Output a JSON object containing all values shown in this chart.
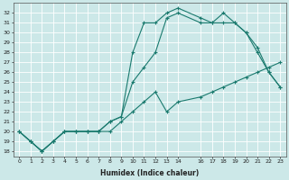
{
  "xlabel": "Humidex (Indice chaleur)",
  "bg_color": "#cce8e8",
  "grid_color": "#ffffff",
  "line_color": "#1a7a6e",
  "xlim": [
    -0.5,
    23.5
  ],
  "ylim": [
    17.5,
    33
  ],
  "xticks": [
    0,
    1,
    2,
    3,
    4,
    5,
    6,
    7,
    8,
    9,
    10,
    11,
    12,
    13,
    14,
    16,
    17,
    18,
    19,
    20,
    21,
    22,
    23
  ],
  "yticks": [
    18,
    19,
    20,
    21,
    22,
    23,
    24,
    25,
    26,
    27,
    28,
    29,
    30,
    31,
    32
  ],
  "curve1_x": [
    0,
    1,
    2,
    3,
    4,
    5,
    6,
    7,
    8,
    9,
    10,
    11,
    12,
    13,
    14,
    16,
    17,
    18,
    19,
    20,
    21,
    22,
    23
  ],
  "curve1_y": [
    20,
    19,
    18,
    19,
    20,
    20,
    20,
    20,
    20,
    21,
    22,
    23,
    24,
    22,
    23,
    23.5,
    24,
    24.5,
    25,
    25.5,
    26,
    26.5,
    27
  ],
  "curve2_x": [
    0,
    1,
    2,
    3,
    4,
    5,
    6,
    7,
    8,
    9,
    10,
    11,
    12,
    13,
    14,
    16,
    17,
    18,
    19,
    20,
    21,
    22,
    23
  ],
  "curve2_y": [
    20,
    19,
    18,
    19,
    20,
    20,
    20,
    20,
    21,
    21.5,
    25,
    26.5,
    28,
    31.5,
    32,
    31,
    31,
    32,
    31,
    30,
    28,
    26,
    24.5
  ],
  "curve3_x": [
    0,
    1,
    2,
    3,
    4,
    5,
    6,
    7,
    8,
    9,
    10,
    11,
    12,
    13,
    14,
    16,
    17,
    18,
    19,
    20,
    21,
    22,
    23
  ],
  "curve3_y": [
    20,
    19,
    18,
    19,
    20,
    20,
    20,
    20,
    21,
    21.5,
    28,
    31,
    31,
    32,
    32.5,
    31.5,
    31,
    31,
    31,
    30,
    28.5,
    26,
    24.5
  ]
}
